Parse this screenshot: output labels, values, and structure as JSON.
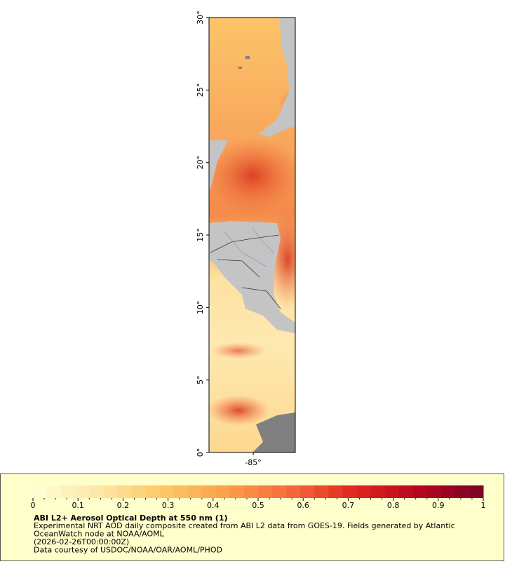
{
  "map": {
    "latlim": [
      0,
      30
    ],
    "lonlim": [
      -88.05,
      -82.1
    ],
    "lat_ticks": [
      {
        "value": 0,
        "label": "0°"
      },
      {
        "value": 5,
        "label": "5°"
      },
      {
        "value": 10,
        "label": "10°"
      },
      {
        "value": 15,
        "label": "15°"
      },
      {
        "value": 20,
        "label": "20°"
      },
      {
        "value": 25,
        "label": "25°"
      },
      {
        "value": 30,
        "label": "30°"
      }
    ],
    "lon_ticks": [
      {
        "value": -85,
        "label": "-85°"
      }
    ]
  },
  "colorbar": {
    "lim": [
      0,
      1
    ],
    "ticks": [
      0,
      0.1,
      0.2,
      0.3,
      0.4,
      0.5,
      0.6,
      0.7,
      0.8,
      0.9,
      1
    ],
    "colors": [
      "#ffffd4",
      "#fee8a8",
      "#fdc966",
      "#fca04a",
      "#f56a3a",
      "#e0261e",
      "#b5061f",
      "#7a0126"
    ]
  },
  "legend": {
    "title": "ABI L2+ Aerosol Optical Depth at 550 nm (1)",
    "lines": [
      "Experimental NRT AOD daily composite created from ABI L2 data from GOES-19. Fields generated by Atlantic",
      "OceanWatch node at NOAA/AOML",
      "(2026-02-26T00:00:00Z)",
      "Data courtesy of USDOC/NOAA/OAR/AOML/PHOD"
    ]
  }
}
